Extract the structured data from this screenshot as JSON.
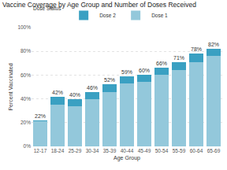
{
  "chart_data": {
    "type": "bar",
    "title": "Vaccine Coverage by Age Group and Number of Doses Received",
    "x_label": "Age Group",
    "y_label": "Percent Vaccinated",
    "legend_title": "Dose Status",
    "categories": [
      "12-17",
      "18-24",
      "25-29",
      "30-34",
      "35-39",
      "40-44",
      "45-49",
      "50-54",
      "55-59",
      "60-64",
      "65-69"
    ],
    "series": [
      {
        "name": "Dose 1",
        "color": "#93c8db",
        "values": [
          21,
          35,
          34,
          40,
          46,
          53,
          54,
          60,
          64,
          71,
          76
        ]
      },
      {
        "name": "Dose 2",
        "color": "#3aa0c2",
        "values": [
          1,
          7,
          6,
          6,
          6,
          6,
          6,
          6,
          7,
          7,
          6
        ]
      }
    ],
    "totals": [
      22,
      42,
      40,
      46,
      52,
      59,
      60,
      66,
      71,
      78,
      82
    ],
    "total_labels": [
      "22%",
      "42%",
      "40%",
      "46%",
      "52%",
      "59%",
      "60%",
      "66%",
      "71%",
      "78%",
      "82%"
    ],
    "stacked": true,
    "ylim": [
      0,
      100
    ],
    "yticks": [
      {
        "value": 0,
        "label": "0%"
      },
      {
        "value": 20,
        "label": "20%"
      },
      {
        "value": 40,
        "label": "40%"
      },
      {
        "value": 60,
        "label": "60%"
      },
      {
        "value": 80,
        "label": "80%"
      },
      {
        "value": 100,
        "label": "100%"
      }
    ],
    "grid": true,
    "legend": "top-left"
  }
}
